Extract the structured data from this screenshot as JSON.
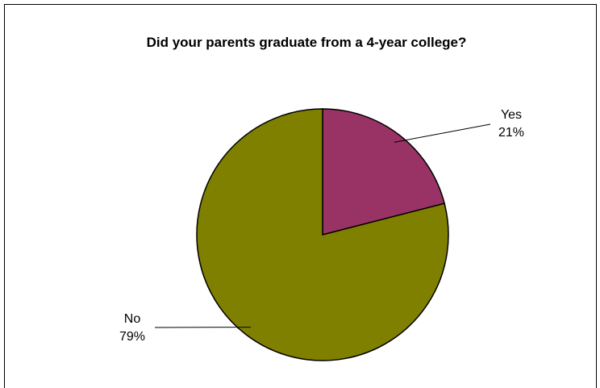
{
  "chart_data": {
    "type": "pie",
    "title": "Did your parents graduate from a 4-year college?",
    "slices": [
      {
        "label": "Yes",
        "value": 21,
        "value_label": "21%",
        "color": "#993366"
      },
      {
        "label": "No",
        "value": 79,
        "value_label": "79%",
        "color": "#808000"
      }
    ],
    "start_angle_deg": 0,
    "direction": "clockwise",
    "legend": "none"
  }
}
